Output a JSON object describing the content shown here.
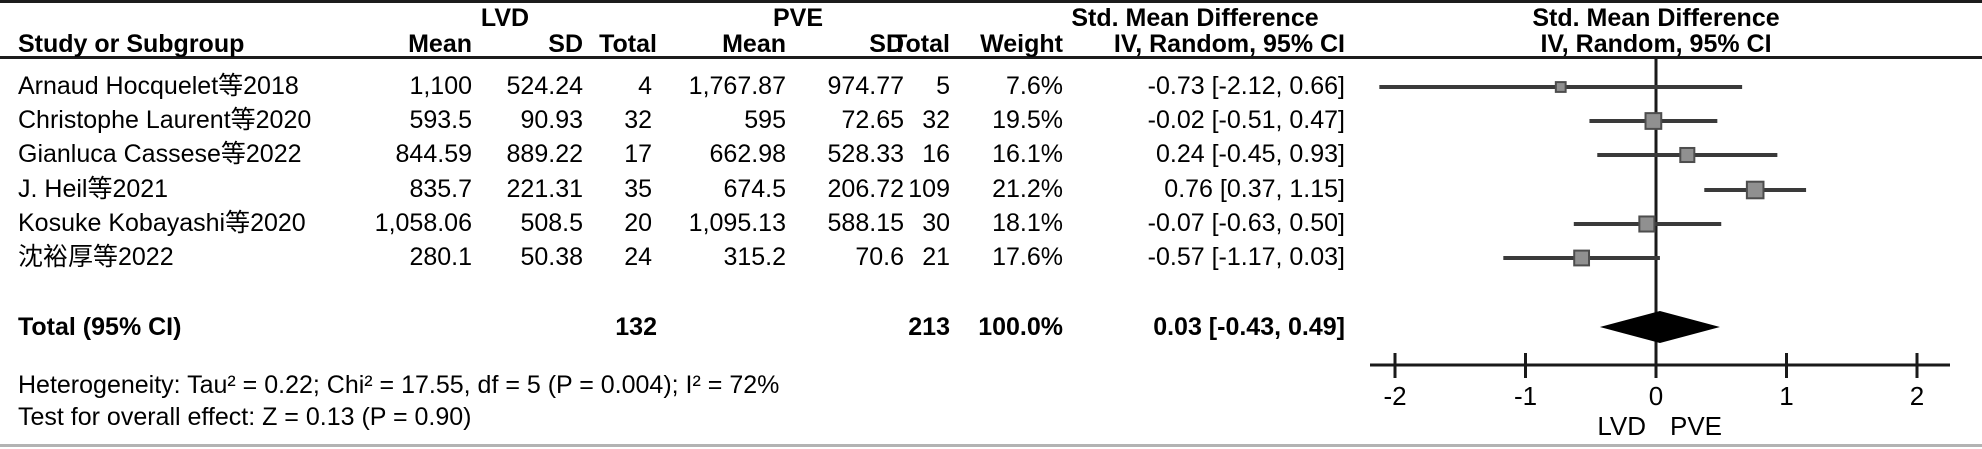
{
  "header": {
    "group1": "LVD",
    "group2": "PVE",
    "smd_title": "Std. Mean Difference",
    "smd_sub": "IV, Random, 95% CI",
    "plot_title": "Std. Mean Difference",
    "plot_sub": "IV, Random, 95% CI",
    "cols": {
      "study": "Study or Subgroup",
      "mean": "Mean",
      "sd": "SD",
      "total": "Total",
      "weight": "Weight"
    }
  },
  "rows": [
    {
      "study": "Arnaud Hocquelet等2018",
      "lvd_mean": "1,100",
      "lvd_sd": "524.24",
      "lvd_total": "4",
      "pve_mean": "1,767.87",
      "pve_sd": "974.77",
      "pve_total": "5",
      "weight": "7.6%",
      "ci_text": "-0.73 [-2.12, 0.66]"
    },
    {
      "study": "Christophe Laurent等2020",
      "lvd_mean": "593.5",
      "lvd_sd": "90.93",
      "lvd_total": "32",
      "pve_mean": "595",
      "pve_sd": "72.65",
      "pve_total": "32",
      "weight": "19.5%",
      "ci_text": "-0.02 [-0.51, 0.47]"
    },
    {
      "study": "Gianluca Cassese等2022",
      "lvd_mean": "844.59",
      "lvd_sd": "889.22",
      "lvd_total": "17",
      "pve_mean": "662.98",
      "pve_sd": "528.33",
      "pve_total": "16",
      "weight": "16.1%",
      "ci_text": "0.24 [-0.45, 0.93]"
    },
    {
      "study": "J. Heil等2021",
      "lvd_mean": "835.7",
      "lvd_sd": "221.31",
      "lvd_total": "35",
      "pve_mean": "674.5",
      "pve_sd": "206.72",
      "pve_total": "109",
      "weight": "21.2%",
      "ci_text": "0.76 [0.37, 1.15]"
    },
    {
      "study": "Kosuke Kobayashi等2020",
      "lvd_mean": "1,058.06",
      "lvd_sd": "508.5",
      "lvd_total": "20",
      "pve_mean": "1,095.13",
      "pve_sd": "588.15",
      "pve_total": "30",
      "weight": "18.1%",
      "ci_text": "-0.07 [-0.63, 0.50]"
    },
    {
      "study": "沈裕厚等2022",
      "lvd_mean": "280.1",
      "lvd_sd": "50.38",
      "lvd_total": "24",
      "pve_mean": "315.2",
      "pve_sd": "70.6",
      "pve_total": "21",
      "weight": "17.6%",
      "ci_text": "-0.57 [-1.17, 0.03]"
    }
  ],
  "total": {
    "label": "Total (95% CI)",
    "lvd_total": "132",
    "pve_total": "213",
    "weight": "100.0%",
    "ci_text": "0.03 [-0.43, 0.49]"
  },
  "footnotes": {
    "heterogeneity": "Heterogeneity: Tau² = 0.22; Chi² = 17.55, df = 5 (P = 0.004); I² = 72%",
    "overall_effect": "Test for overall effect: Z = 0.13 (P = 0.90)"
  },
  "chart_data": {
    "type": "forest",
    "effect_measure": "Std. Mean Difference (IV, Random, 95% CI)",
    "studies": [
      {
        "name": "Arnaud Hocquelet等2018",
        "smd": -0.73,
        "ci": [
          -2.12,
          0.66
        ],
        "weight": 7.6
      },
      {
        "name": "Christophe Laurent等2020",
        "smd": -0.02,
        "ci": [
          -0.51,
          0.47
        ],
        "weight": 19.5
      },
      {
        "name": "Gianluca Cassese等2022",
        "smd": 0.24,
        "ci": [
          -0.45,
          0.93
        ],
        "weight": 16.1
      },
      {
        "name": "J. Heil等2021",
        "smd": 0.76,
        "ci": [
          0.37,
          1.15
        ],
        "weight": 21.2
      },
      {
        "name": "Kosuke Kobayashi等2020",
        "smd": -0.07,
        "ci": [
          -0.63,
          0.5
        ],
        "weight": 18.1
      },
      {
        "name": "沈裕厚等2022",
        "smd": -0.57,
        "ci": [
          -1.17,
          0.03
        ],
        "weight": 17.6
      }
    ],
    "total": {
      "smd": 0.03,
      "ci": [
        -0.43,
        0.49
      ]
    },
    "axis": {
      "ticks": [
        -2,
        -1,
        0,
        1,
        2
      ],
      "tick_labels": [
        "-2",
        "-1",
        "0",
        "1",
        "2"
      ],
      "min": -2.2,
      "max": 2.27
    },
    "axis_label_left": "LVD",
    "axis_label_right": "PVE",
    "colors": {
      "marker": "#909090",
      "marker_border": "#4d4d4d",
      "ci_line": "#3a3a3a",
      "diamond": "#000000",
      "axis": "#1a1a1a"
    }
  }
}
